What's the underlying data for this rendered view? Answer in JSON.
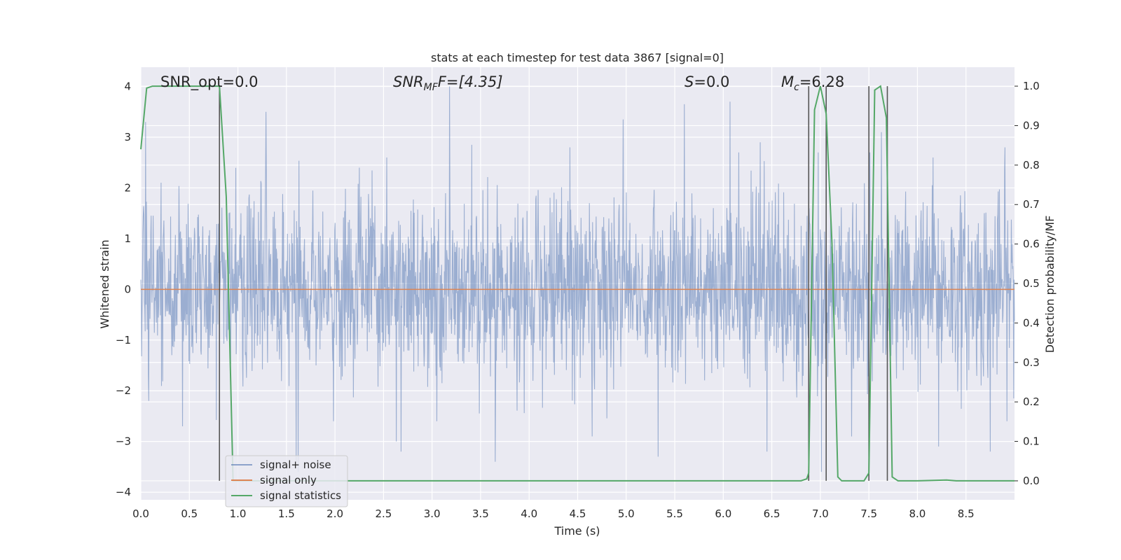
{
  "chart_data": {
    "type": "line",
    "title": "stats at each timestep for test data 3867 [signal=0]",
    "xlabel": "Time (s)",
    "ylabel_left": "Whitened strain",
    "ylabel_right": "Detection probability/MF",
    "xlim": [
      0.0,
      9.0
    ],
    "ylim_left": [
      -4.15,
      4.38
    ],
    "ylim_right": [
      -0.048,
      1.048
    ],
    "x_ticks": [
      "0.0",
      "0.5",
      "1.0",
      "1.5",
      "2.0",
      "2.5",
      "3.0",
      "3.5",
      "4.0",
      "4.5",
      "5.0",
      "5.5",
      "6.0",
      "6.5",
      "7.0",
      "7.5",
      "8.0",
      "8.5"
    ],
    "y_left_ticks": [
      "4",
      "3",
      "2",
      "1",
      "0",
      "−1",
      "−2",
      "−3",
      "−4"
    ],
    "y_right_ticks": [
      "1.0",
      "0.9",
      "0.8",
      "0.7",
      "0.6",
      "0.5",
      "0.4",
      "0.3",
      "0.2",
      "0.1",
      "0.0"
    ],
    "grid": true,
    "legend_placement": "lower-left",
    "annotations": {
      "snr_opt": "SNR_opt=0.0",
      "snr_mf_main": "SNR",
      "snr_mf_sub": "MF",
      "snr_mf_value": "F=[4.35]",
      "s_main": "S",
      "s_value": "=0.0",
      "mc_main": "M",
      "mc_sub": "c",
      "mc_value": "=6.28"
    },
    "vertical_lines_x": [
      0.81,
      6.88,
      7.06,
      7.5,
      7.69
    ],
    "series": [
      {
        "name": "signal+ noise",
        "color": "#4c72b0",
        "axis": "left",
        "noise": {
          "seed": 3867,
          "samples": 2200,
          "std": 0.9,
          "x_start": 0.0,
          "x_end": 9.0
        },
        "spikes": [
          [
            0.05,
            3.3
          ],
          [
            0.08,
            -2.2
          ],
          [
            0.43,
            -2.7
          ],
          [
            1.03,
            1.5
          ],
          [
            1.29,
            3.5
          ],
          [
            1.6,
            -3.4
          ],
          [
            1.62,
            -3.6
          ],
          [
            2.25,
            2.4
          ],
          [
            2.63,
            -3.0
          ],
          [
            2.68,
            -3.2
          ],
          [
            3.18,
            4.0
          ],
          [
            3.41,
            2.85
          ],
          [
            3.65,
            -3.4
          ],
          [
            4.42,
            2.8
          ],
          [
            4.65,
            -2.9
          ],
          [
            4.97,
            3.35
          ],
          [
            5.33,
            -3.3
          ],
          [
            5.6,
            3.65
          ],
          [
            6.07,
            3.7
          ],
          [
            6.16,
            2.7
          ],
          [
            6.38,
            2.9
          ],
          [
            6.45,
            -3.2
          ],
          [
            6.98,
            2.7
          ],
          [
            7.01,
            -3.6
          ],
          [
            7.32,
            -2.9
          ],
          [
            7.51,
            2.7
          ],
          [
            7.63,
            3.1
          ],
          [
            8.16,
            2.6
          ],
          [
            8.22,
            -3.1
          ],
          [
            8.75,
            -3.2
          ],
          [
            8.9,
            2.8
          ]
        ]
      },
      {
        "name": "signal only",
        "color": "#dd8452",
        "axis": "left",
        "x": [
          0.0,
          9.0
        ],
        "y": [
          0.0,
          0.0
        ]
      },
      {
        "name": "signal statistics",
        "color": "#55a868",
        "axis": "right",
        "x": [
          0.0,
          0.06,
          0.12,
          0.18,
          0.78,
          0.81,
          0.88,
          0.92,
          0.95,
          1.0,
          6.4,
          6.5,
          6.6,
          6.8,
          6.86,
          6.88,
          6.94,
          7.0,
          7.06,
          7.12,
          7.18,
          7.22,
          7.3,
          7.45,
          7.5,
          7.56,
          7.62,
          7.68,
          7.74,
          7.8,
          8.0,
          8.3,
          8.4,
          9.0
        ],
        "y": [
          0.84,
          0.995,
          1.0,
          1.0,
          1.0,
          1.0,
          0.72,
          0.31,
          0.0,
          0.0,
          0.0,
          0.0,
          0.0,
          0.0,
          0.005,
          0.02,
          0.94,
          1.0,
          0.93,
          0.6,
          0.01,
          0.0,
          0.0,
          0.0,
          0.02,
          0.99,
          1.0,
          0.92,
          0.01,
          0.0,
          0.0,
          0.002,
          0.0,
          0.0
        ]
      }
    ]
  }
}
